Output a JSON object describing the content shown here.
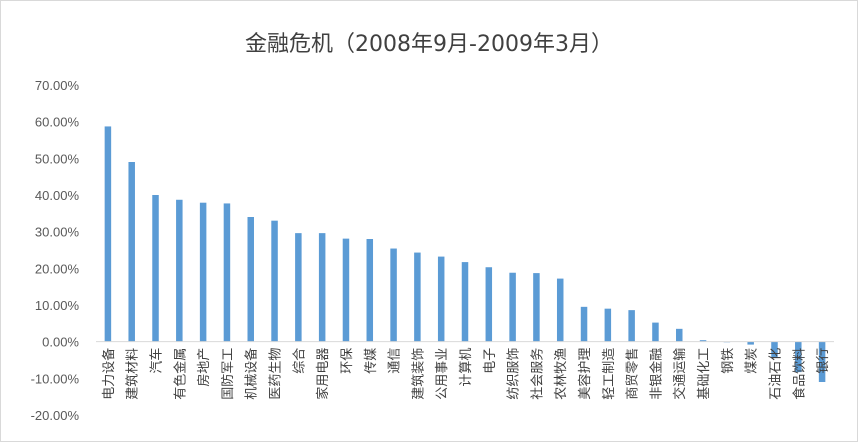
{
  "chart_data": {
    "type": "bar",
    "title": "金融危机（2008年9月-2009年3月）",
    "xlabel": "",
    "ylabel": "",
    "ylim": [
      -0.2,
      0.7
    ],
    "y_ticks": [
      "70.00%",
      "60.00%",
      "50.00%",
      "40.00%",
      "30.00%",
      "20.00%",
      "10.00%",
      "0.00%",
      "-10.00%",
      "-20.00%"
    ],
    "y_tick_values": [
      0.7,
      0.6,
      0.5,
      0.4,
      0.3,
      0.2,
      0.1,
      0.0,
      -0.1,
      -0.2
    ],
    "grid": false,
    "legend": "none",
    "bar_color": "#5b9bd5",
    "categories": [
      "电力设备",
      "建筑材料",
      "汽车",
      "有色金属",
      "房地产",
      "国防军工",
      "机械设备",
      "医药生物",
      "综合",
      "家用电器",
      "环保",
      "传媒",
      "通信",
      "建筑装饰",
      "公用事业",
      "计算机",
      "电子",
      "纺织服饰",
      "社会服务",
      "农林牧渔",
      "美容护理",
      "轻工制造",
      "商贸零售",
      "非银金融",
      "交通运输",
      "基础化工",
      "钢铁",
      "煤炭",
      "石油石化",
      "食品饮料",
      "银行"
    ],
    "values": [
      0.587,
      0.49,
      0.4,
      0.387,
      0.379,
      0.377,
      0.34,
      0.33,
      0.296,
      0.296,
      0.281,
      0.28,
      0.254,
      0.243,
      0.232,
      0.217,
      0.203,
      0.188,
      0.187,
      0.172,
      0.095,
      0.09,
      0.086,
      0.052,
      0.035,
      0.004,
      0.0,
      -0.008,
      -0.043,
      -0.083,
      -0.11
    ]
  }
}
